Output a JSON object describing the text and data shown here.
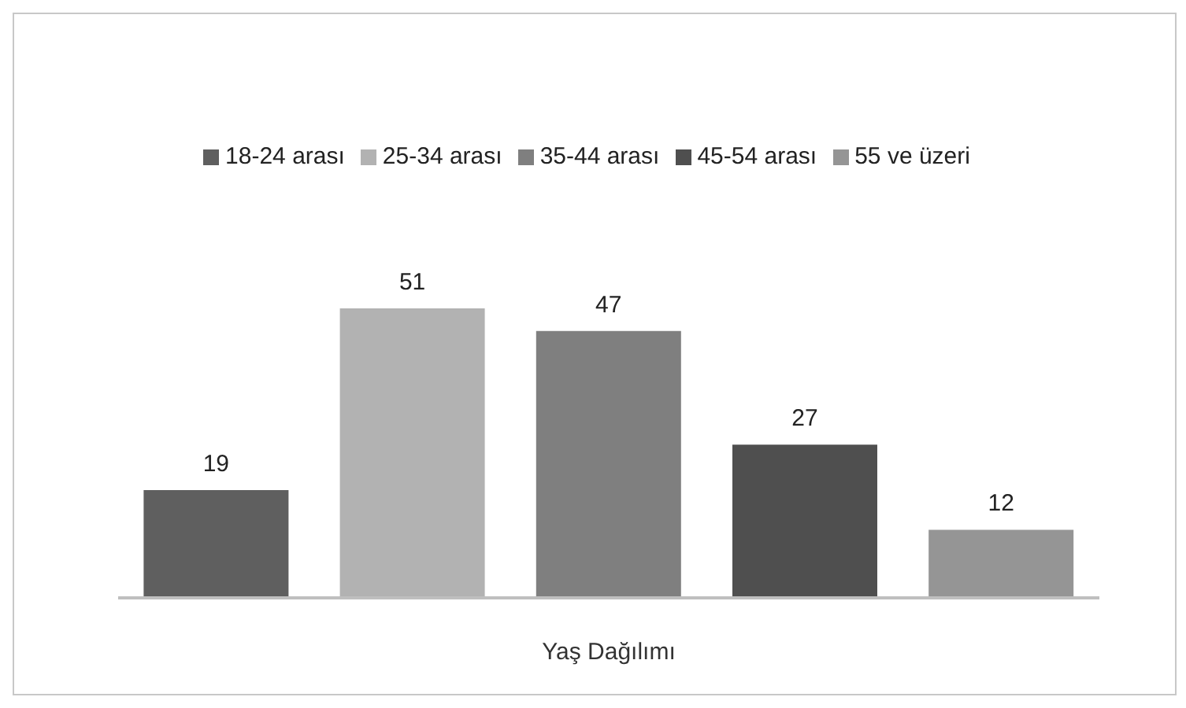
{
  "chart_data": {
    "type": "bar",
    "xlabel": "Yaş Dağılımı",
    "categories": [
      null,
      null,
      null,
      null,
      null
    ],
    "series": [
      {
        "name": "18-24 arası",
        "color": "#5f5f5f",
        "values": [
          19,
          null,
          null,
          null,
          null
        ]
      },
      {
        "name": "25-34 arası",
        "color": "#b2b2b2",
        "values": [
          null,
          51,
          null,
          null,
          null
        ]
      },
      {
        "name": "35-44 arası",
        "color": "#7f7f7f",
        "values": [
          null,
          null,
          47,
          null,
          null
        ]
      },
      {
        "name": "45-54 arası",
        "color": "#4f4f4f",
        "values": [
          null,
          null,
          null,
          27,
          null
        ]
      },
      {
        "name": "55 ve üzeri",
        "color": "#959595",
        "values": [
          null,
          null,
          null,
          null,
          12
        ]
      }
    ],
    "stacked": true,
    "tick_labels": false,
    "data_labels": true,
    "legend": "top",
    "grid": false
  }
}
